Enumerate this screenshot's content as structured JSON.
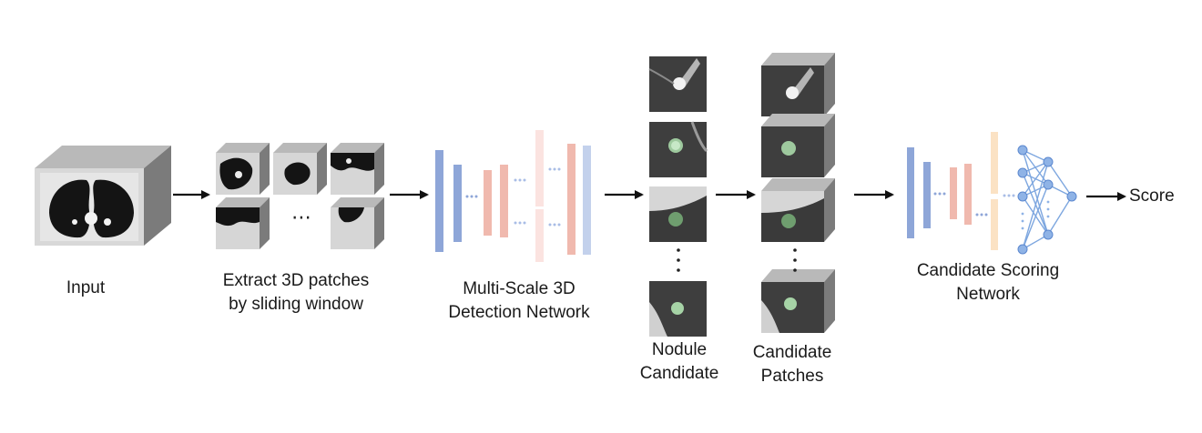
{
  "labels": {
    "input": "Input",
    "extract_line1": "Extract 3D patches",
    "extract_line2": "by sliding window",
    "detection_line1": "Multi-Scale 3D",
    "detection_line2": "Detection Network",
    "nodule_line1": "Nodule",
    "nodule_line2": "Candidate",
    "patches_line1": "Candidate",
    "patches_line2": "Patches",
    "scoring_line1": "Candidate Scoring",
    "scoring_line2": "Network",
    "score": "Score"
  },
  "glyphs": {
    "ellipsis": "⋯"
  },
  "colors": {
    "blue_layer": "#8ea6d8",
    "light_blue_layer": "#c3d1ec",
    "red_layer": "#f0b9ae",
    "pink_layer": "#fbe3e0",
    "peach_layer": "#fbe2c4",
    "neuron": "#8fb3e6",
    "edge": "#6f9ddc",
    "cube_side": "#7b7b7b",
    "cube_top": "#b9b9b9",
    "arrow": "#111111"
  },
  "icons": [
    "ct-volume-cube",
    "lung-patch-cube",
    "nodule-crop-image",
    "candidate-patch-cube",
    "neural-network-graph",
    "arrow-icon"
  ]
}
